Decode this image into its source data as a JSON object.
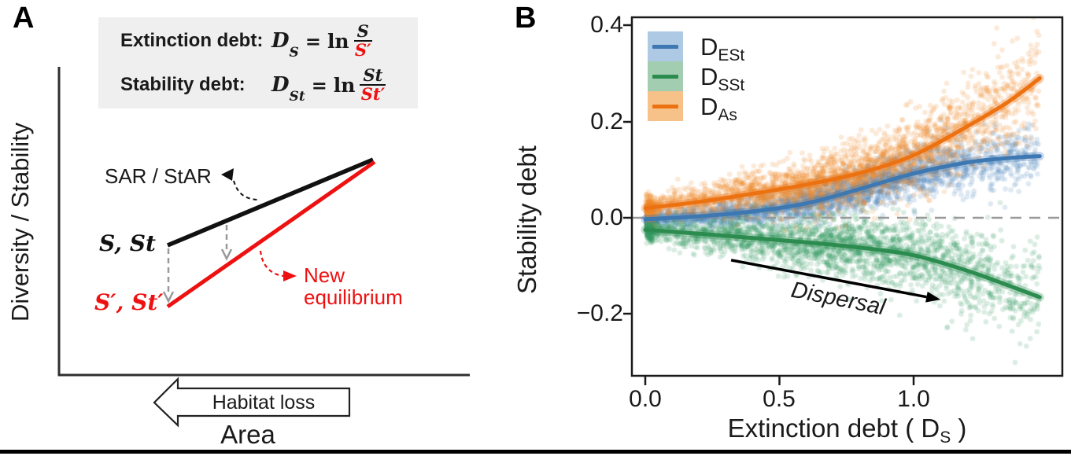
{
  "page": {
    "background": "#ffffff",
    "bottom_bar_color": "#000000"
  },
  "panelA": {
    "label": "A",
    "formula_box": {
      "row1": {
        "title": "Extinction debt:",
        "var_main": "D",
        "var_sub": "S",
        "equals": "=",
        "ln": "ln",
        "numerator": "S",
        "denominator": "S′"
      },
      "row2": {
        "title": "Stability debt:",
        "var_main": "D",
        "var_sub": "St",
        "equals": "=",
        "ln": "ln",
        "numerator": "St",
        "denominator": "St′"
      }
    },
    "y_axis_label": "Diversity / Stability",
    "x_axis_label": "Area",
    "sar_label": "SAR / StAR",
    "equilibrium_point_label": "S, St",
    "new_equilibrium_point_label": "S′, St′",
    "new_equilibrium_label": {
      "line1": "New",
      "line2": "equilibrium"
    },
    "habitat_loss_label": "Habitat loss",
    "colors": {
      "sar_line": "#111111",
      "new_equilibrium_line": "#ee1111",
      "red_text": "#ee1111",
      "drop_arrows": "#999999",
      "formula_box_bg": "#efefef"
    }
  },
  "panelB": {
    "label": "B"
  },
  "chart_data": {
    "type": "scatter",
    "title": "",
    "xlabel": {
      "pre": "Extinction debt ( ",
      "var_main": "D",
      "var_sub": "S",
      "post": " )"
    },
    "ylabel": "Stability debt",
    "xlim": [
      -0.05,
      1.55
    ],
    "ylim": [
      -0.33,
      0.42
    ],
    "grid": false,
    "legend_position": "top-left",
    "zero_reference_line": 0.0,
    "x_ticks": [
      {
        "label": "0.0",
        "value": 0.0
      },
      {
        "label": "0.5",
        "value": 0.5
      },
      {
        "label": "1.0",
        "value": 1.0
      }
    ],
    "y_ticks": [
      {
        "label": "0.4",
        "value": 0.4
      },
      {
        "label": "0.2",
        "value": 0.2
      },
      {
        "label": "0.0",
        "value": 0.0
      },
      {
        "label": "−0.2",
        "value": -0.2
      }
    ],
    "x_data_max": 1.47,
    "series": [
      {
        "name_main": "D",
        "name_sub": "ESt",
        "line_color": "#3d78b2",
        "point_color": "#4c86bb",
        "band_color": "#aec9e3",
        "smooth_x": [
          0,
          0.2,
          0.4,
          0.6,
          0.8,
          1.0,
          1.2,
          1.35,
          1.47
        ],
        "smooth_y": [
          -0.003,
          0.003,
          0.013,
          0.03,
          0.06,
          0.092,
          0.115,
          0.124,
          0.128
        ],
        "scatter_n": 2700,
        "scatter_sigma_base": 0.008,
        "scatter_sigma_slope": 0.018,
        "seed": 7
      },
      {
        "name_main": "D",
        "name_sub": "SSt",
        "line_color": "#2c8c4f",
        "point_color": "#3a9b62",
        "band_color": "#a2cdb0",
        "smooth_x": [
          0,
          0.2,
          0.4,
          0.6,
          0.8,
          1.0,
          1.2,
          1.35,
          1.47
        ],
        "smooth_y": [
          -0.025,
          -0.033,
          -0.042,
          -0.051,
          -0.062,
          -0.078,
          -0.11,
          -0.14,
          -0.165
        ],
        "scatter_n": 2500,
        "scatter_sigma_base": 0.012,
        "scatter_sigma_slope": 0.03,
        "seed": 13
      },
      {
        "name_main": "D",
        "name_sub": "As",
        "line_color": "#ec7211",
        "point_color": "#f08c2e",
        "band_color": "#f7c28a",
        "smooth_x": [
          0,
          0.2,
          0.4,
          0.6,
          0.8,
          1.0,
          1.2,
          1.35,
          1.47
        ],
        "smooth_y": [
          0.02,
          0.033,
          0.05,
          0.069,
          0.093,
          0.13,
          0.19,
          0.24,
          0.29
        ],
        "scatter_n": 2800,
        "scatter_sigma_base": 0.012,
        "scatter_sigma_slope": 0.028,
        "seed": 29
      }
    ],
    "annotation": {
      "label": "Dispersal",
      "arrow_x": [
        0.32,
        1.1
      ],
      "arrow_y": [
        -0.088,
        -0.17
      ]
    }
  }
}
